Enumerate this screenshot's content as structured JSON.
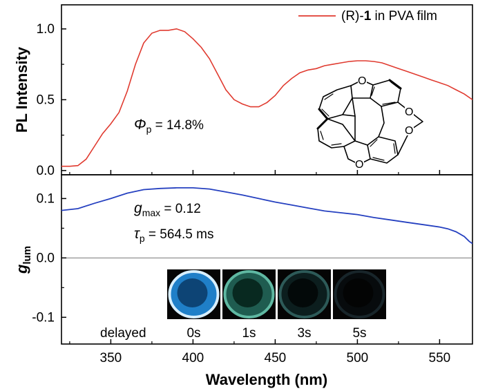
{
  "chart_data": [
    {
      "type": "line",
      "panel": "top",
      "ylabel": "PL Intensity",
      "xlim": [
        320,
        570
      ],
      "ylim": [
        -0.03,
        1.17
      ],
      "yticks": [
        0.0,
        0.5,
        1.0
      ],
      "ytick_labels": [
        "0.0",
        "0.5",
        "1.0"
      ],
      "legend": "top-right",
      "series": [
        {
          "name": "(R)-1 in PVA film",
          "label_prefix": "(R)-",
          "label_bold": "1",
          "label_suffix": " in PVA film",
          "color": "#e03a2f",
          "x": [
            320,
            325,
            330,
            335,
            340,
            345,
            350,
            355,
            360,
            365,
            370,
            375,
            380,
            385,
            390,
            395,
            400,
            405,
            410,
            415,
            420,
            425,
            430,
            435,
            440,
            445,
            450,
            455,
            460,
            465,
            470,
            475,
            480,
            485,
            490,
            495,
            500,
            505,
            510,
            515,
            520,
            525,
            530,
            535,
            540,
            545,
            550,
            555,
            560,
            565,
            570
          ],
          "y": [
            0.03,
            0.03,
            0.035,
            0.08,
            0.17,
            0.26,
            0.33,
            0.41,
            0.56,
            0.75,
            0.9,
            0.97,
            0.99,
            0.99,
            1.0,
            0.98,
            0.93,
            0.87,
            0.79,
            0.68,
            0.57,
            0.5,
            0.47,
            0.45,
            0.45,
            0.48,
            0.53,
            0.6,
            0.65,
            0.69,
            0.71,
            0.72,
            0.74,
            0.75,
            0.76,
            0.77,
            0.775,
            0.775,
            0.77,
            0.76,
            0.74,
            0.72,
            0.7,
            0.68,
            0.66,
            0.64,
            0.62,
            0.6,
            0.57,
            0.54,
            0.5
          ]
        }
      ],
      "annotations": [
        {
          "symbol": "Φ",
          "subscript": "p",
          "text": " = 14.8%"
        }
      ],
      "inset": "molecular structure of (R)-1"
    },
    {
      "type": "line",
      "panel": "bottom",
      "xlabel": "Wavelength (nm)",
      "ylabel_main": "g",
      "ylabel_sub": "lum",
      "xlim": [
        320,
        570
      ],
      "ylim": [
        -0.145,
        0.14
      ],
      "xticks": [
        350,
        400,
        450,
        500,
        550
      ],
      "xtick_labels": [
        "350",
        "400",
        "450",
        "500",
        "550"
      ],
      "yticks": [
        -0.1,
        0.0,
        0.1
      ],
      "ytick_labels": [
        "-0.1",
        "0.0",
        "0.1"
      ],
      "zero_line": true,
      "series": [
        {
          "name": "g_lum",
          "color": "#2540c0",
          "x": [
            320,
            330,
            340,
            350,
            360,
            370,
            380,
            390,
            400,
            410,
            420,
            430,
            440,
            450,
            460,
            470,
            480,
            490,
            500,
            510,
            520,
            530,
            540,
            550,
            555,
            560,
            565,
            568,
            570
          ],
          "y": [
            0.08,
            0.083,
            0.092,
            0.1,
            0.109,
            0.115,
            0.117,
            0.118,
            0.118,
            0.116,
            0.111,
            0.106,
            0.1,
            0.094,
            0.089,
            0.084,
            0.079,
            0.076,
            0.073,
            0.068,
            0.064,
            0.06,
            0.056,
            0.052,
            0.049,
            0.044,
            0.036,
            0.028,
            0.024
          ]
        }
      ],
      "annotations": [
        {
          "symbol": "g",
          "subscript": "max",
          "text": " = 0.12"
        },
        {
          "symbol": "τ",
          "subscript": "p",
          "text": " = 564.5 ms"
        }
      ],
      "photo_row": {
        "caption": "delayed",
        "frames": [
          {
            "label": "0s",
            "ring": "#d8efff",
            "fill": "#1f7fc8",
            "center": "#0a3a66"
          },
          {
            "label": "1s",
            "ring": "#5fb8a2",
            "fill": "#1f5c50",
            "center": "#052018"
          },
          {
            "label": "3s",
            "ring": "#2d5a58",
            "fill": "#0c1e1e",
            "center": "#020606"
          },
          {
            "label": "5s",
            "ring": "#18252a",
            "fill": "#070b0d",
            "center": "#020303"
          }
        ]
      }
    }
  ]
}
